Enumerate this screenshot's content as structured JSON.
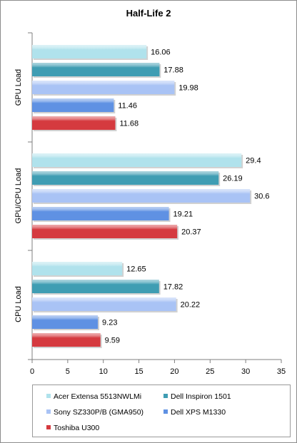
{
  "chart_data": {
    "type": "bar",
    "orientation": "horizontal",
    "title": "Half-Life 2",
    "categories": [
      "GPU Load",
      "GPU/CPU Load",
      "CPU Load"
    ],
    "series": [
      {
        "name": "Acer Extensa 5513NWLMi",
        "color": "#b0e2ec",
        "values": [
          16.06,
          29.4,
          12.65
        ]
      },
      {
        "name": "Dell Inspiron 1501",
        "color": "#3f9db3",
        "values": [
          17.88,
          26.19,
          17.82
        ]
      },
      {
        "name": "Sony SZ330P/B (GMA950)",
        "color": "#a9c3f5",
        "values": [
          19.98,
          30.6,
          20.22
        ]
      },
      {
        "name": "Dell XPS M1330",
        "color": "#5f91e3",
        "values": [
          11.46,
          19.21,
          9.23
        ]
      },
      {
        "name": "Toshiba U300",
        "color": "#d53a3f",
        "values": [
          11.68,
          20.37,
          9.59
        ]
      }
    ],
    "value_labels": [
      [
        "16.06",
        "29.4",
        "12.65"
      ],
      [
        "17.88",
        "26.19",
        "17.82"
      ],
      [
        "19.98",
        "30.6",
        "20.22"
      ],
      [
        "11.46",
        "19.21",
        "9.23"
      ],
      [
        "11.68",
        "20.37",
        "9.59"
      ]
    ],
    "xlim": [
      0,
      35
    ],
    "xticks": [
      "0",
      "5",
      "10",
      "15",
      "20",
      "25",
      "30",
      "35"
    ],
    "xlabel": "",
    "ylabel": "",
    "grid": false,
    "legend_position": "bottom"
  }
}
